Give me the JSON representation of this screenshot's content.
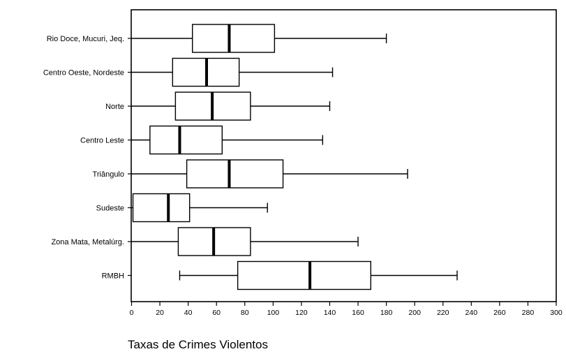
{
  "chart_data": {
    "type": "boxplot",
    "orientation": "horizontal",
    "xlabel": "Taxas de Crimes Violentos",
    "xlim": [
      0,
      300
    ],
    "xticks": [
      0,
      20,
      40,
      60,
      80,
      100,
      120,
      140,
      160,
      180,
      200,
      220,
      240,
      260,
      280,
      300
    ],
    "grid": false,
    "categories": [
      "Rio Doce, Mucuri, Jeq.",
      "Centro Oeste, Nordeste",
      "Norte",
      "Centro Leste",
      "Triângulo",
      "Sudeste",
      "Zona Mata, Metalúrg.",
      "RMBH"
    ],
    "boxes": [
      {
        "min": 0,
        "q1": 43,
        "median": 69,
        "q3": 101,
        "max": 180
      },
      {
        "min": 0,
        "q1": 29,
        "median": 53,
        "q3": 76,
        "max": 142
      },
      {
        "min": 0,
        "q1": 31,
        "median": 57,
        "q3": 84,
        "max": 140
      },
      {
        "min": 0,
        "q1": 13,
        "median": 34,
        "q3": 64,
        "max": 135
      },
      {
        "min": 0,
        "q1": 39,
        "median": 69,
        "q3": 107,
        "max": 195
      },
      {
        "min": 0,
        "q1": 1,
        "median": 26,
        "q3": 41,
        "max": 96
      },
      {
        "min": 0,
        "q1": 33,
        "median": 58,
        "q3": 84,
        "max": 160
      },
      {
        "min": 34,
        "q1": 75,
        "median": 126,
        "q3": 169,
        "max": 230
      }
    ]
  }
}
